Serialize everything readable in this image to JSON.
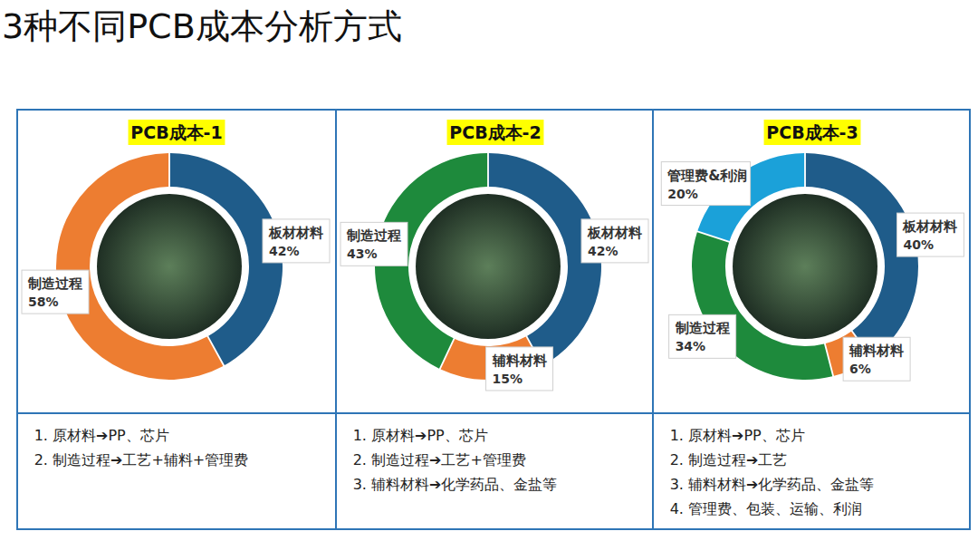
{
  "title": "3种不同PCB成本分析方式",
  "chart_data": [
    {
      "type": "donut",
      "title": "PCB成本-1",
      "categories": [
        "板材材料",
        "制造过程"
      ],
      "values": [
        42,
        58
      ],
      "value_labels": [
        "42%",
        "58%"
      ],
      "colors": [
        "#1f5c8a",
        "#ed7d31"
      ],
      "data_labels": true,
      "notes": [
        "原材料➔PP、芯片",
        "制造过程➔工艺+辅料+管理费"
      ]
    },
    {
      "type": "donut",
      "title": "PCB成本-2",
      "categories": [
        "板材材料",
        "辅料材料",
        "制造过程"
      ],
      "values": [
        42,
        15,
        43
      ],
      "value_labels": [
        "42%",
        "15%",
        "43%"
      ],
      "colors": [
        "#1f5c8a",
        "#ed7d31",
        "#1e8a3c"
      ],
      "data_labels": true,
      "notes": [
        "原材料➔PP、芯片",
        "制造过程➔工艺+管理费",
        "辅料材料➔化学药品、金盐等"
      ]
    },
    {
      "type": "donut",
      "title": "PCB成本-3",
      "categories": [
        "板材材料",
        "辅料材料",
        "制造过程",
        "管理费&利润"
      ],
      "values": [
        40,
        6,
        34,
        20
      ],
      "value_labels": [
        "40%",
        "6%",
        "34%",
        "20%"
      ],
      "colors": [
        "#1f5c8a",
        "#ed7d31",
        "#1e8a3c",
        "#1ba1d9"
      ],
      "data_labels": true,
      "notes": [
        "原材料➔PP、芯片",
        "制造过程➔工艺",
        "辅料材料➔化学药品、金盐等",
        "管理费、包装、运输、利润"
      ]
    }
  ]
}
